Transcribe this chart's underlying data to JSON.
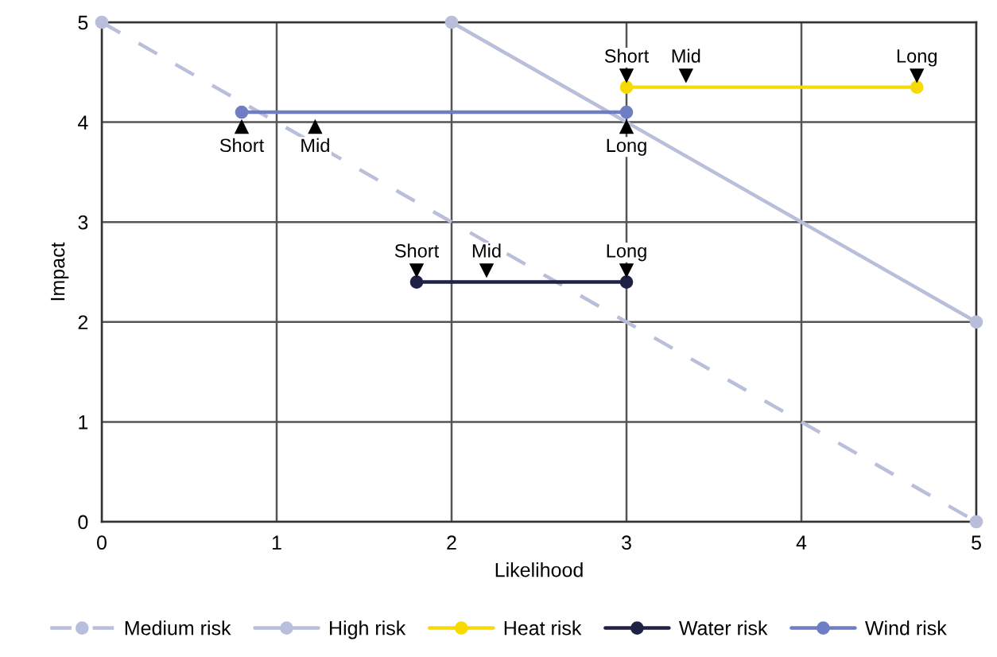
{
  "chart_data": {
    "type": "line",
    "xlabel": "Likelihood",
    "ylabel": "Impact",
    "xlim": [
      0,
      5
    ],
    "ylim": [
      0,
      5
    ],
    "xticks": [
      0,
      1,
      2,
      3,
      4,
      5
    ],
    "yticks": [
      0,
      1,
      2,
      3,
      4,
      5
    ],
    "grid": true,
    "legend": "bottom",
    "marker": "circle",
    "line_style": "solid",
    "series": [
      {
        "name": "Medium risk",
        "color": "#b9bedb",
        "x": [
          0,
          5
        ],
        "values": [
          5,
          0
        ],
        "line_style": "dashed"
      },
      {
        "name": "High risk",
        "color": "#b9bedb",
        "x": [
          2,
          5
        ],
        "values": [
          5,
          2
        ]
      },
      {
        "name": "Heat risk",
        "color": "#f7da00",
        "x": [
          3,
          4.66
        ],
        "values": [
          4.35,
          4.35
        ]
      },
      {
        "name": "Water risk",
        "color": "#1f2146",
        "x": [
          1.8,
          3
        ],
        "values": [
          2.4,
          2.4
        ]
      },
      {
        "name": "Wind risk",
        "color": "#6f7ec4",
        "x": [
          0.8,
          3
        ],
        "values": [
          4.1,
          4.1
        ]
      }
    ],
    "annotations": [
      {
        "text": "Short",
        "x": 3,
        "y": 4.47
      },
      {
        "text": "Mid",
        "x": 3.34,
        "y": 4.47
      },
      {
        "text": "Long",
        "x": 4.66,
        "y": 4.47
      },
      {
        "text": "Short",
        "x": 1.8,
        "y": 2.52
      },
      {
        "text": "Mid",
        "x": 2.2,
        "y": 2.52
      },
      {
        "text": "Long",
        "x": 3,
        "y": 2.52
      },
      {
        "text": "Short",
        "x": 0.8,
        "y": 3.95
      },
      {
        "text": "Mid",
        "x": 1.22,
        "y": 3.95
      },
      {
        "text": "Long",
        "x": 3,
        "y": 3.95
      }
    ]
  }
}
